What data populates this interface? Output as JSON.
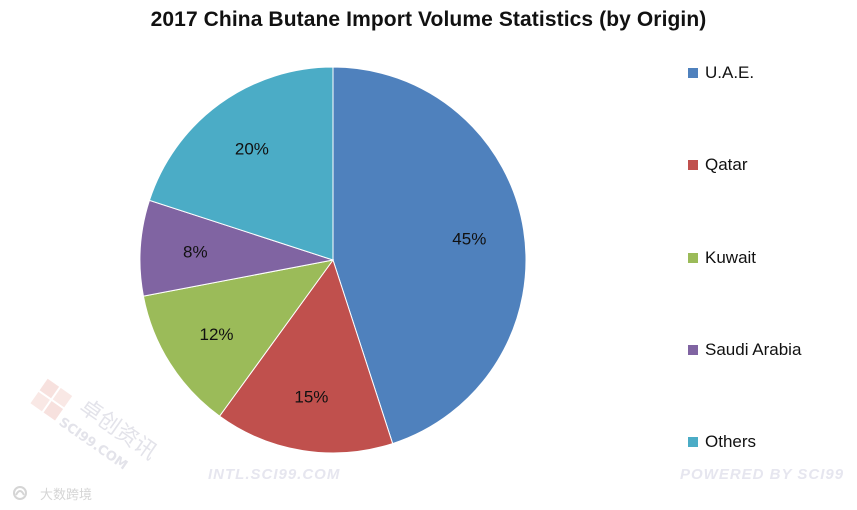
{
  "chart_data": {
    "type": "pie",
    "title": "2017 China Butane Import Volume Statistics (by Origin)",
    "series": [
      {
        "name": "U.A.E.",
        "value": 45,
        "label": "45%",
        "color": "#4F81BD"
      },
      {
        "name": "Qatar",
        "value": 15,
        "label": "15%",
        "color": "#C0504D"
      },
      {
        "name": "Kuwait",
        "value": 12,
        "label": "12%",
        "color": "#9BBB59"
      },
      {
        "name": "Saudi Arabia",
        "value": 8,
        "label": "8%",
        "color": "#8064A2"
      },
      {
        "name": "Others",
        "value": 20,
        "label": "20%",
        "color": "#4BACC6"
      }
    ],
    "legend": "right",
    "start": "top",
    "direction": "clockwise"
  },
  "watermarks": {
    "intl": "INTL.SCI99.COM",
    "powered": "POWERED BY SCI99",
    "logo_cn": "卓创资讯",
    "logo_en": "SCI99.COM",
    "brand_cn": "大数跨境"
  }
}
